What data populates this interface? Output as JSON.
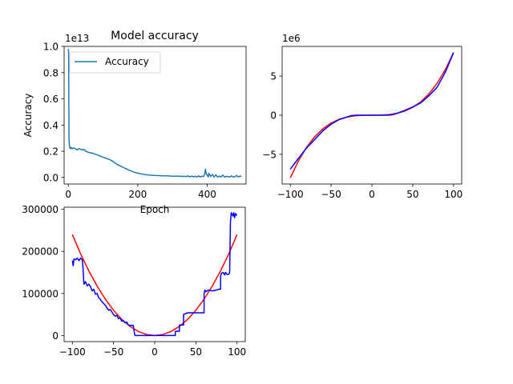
{
  "chart_data": [
    {
      "type": "line",
      "title": "Model accuracy",
      "xlabel": "Epoch",
      "ylabel": "Accuracy",
      "y_offset_text": "1e13",
      "xlim": [
        -12,
        512
      ],
      "ylim": [
        -0.05,
        1.0
      ],
      "x_ticks": [
        0,
        200,
        400
      ],
      "x_tick_labels": [
        "0",
        "200",
        "400"
      ],
      "y_ticks": [
        0.0,
        0.2,
        0.4,
        0.6,
        0.8,
        1.0
      ],
      "y_tick_labels": [
        "0.0",
        "0.2",
        "0.4",
        "0.6",
        "0.8",
        "1.0"
      ],
      "legend": {
        "position": "upper-left",
        "entries": [
          "Accuracy"
        ]
      },
      "grid": false,
      "series": [
        {
          "name": "Accuracy",
          "color": "#1f77b4",
          "x": [
            0,
            1,
            2,
            3,
            4,
            6,
            8,
            10,
            15,
            20,
            25,
            30,
            35,
            40,
            45,
            50,
            60,
            70,
            80,
            90,
            100,
            110,
            120,
            130,
            140,
            150,
            160,
            170,
            180,
            190,
            200,
            210,
            220,
            230,
            240,
            250,
            260,
            270,
            280,
            290,
            300,
            310,
            320,
            330,
            340,
            345,
            350,
            355,
            360,
            365,
            370,
            375,
            380,
            385,
            390,
            393,
            395,
            397,
            400,
            403,
            405,
            410,
            415,
            420,
            425,
            430,
            435,
            440,
            445,
            450,
            455,
            460,
            465,
            470,
            475,
            480,
            485,
            490,
            495,
            499
          ],
          "y": [
            0.98,
            0.95,
            0.3,
            0.25,
            0.23,
            0.22,
            0.23,
            0.22,
            0.225,
            0.22,
            0.21,
            0.22,
            0.215,
            0.21,
            0.215,
            0.2,
            0.19,
            0.185,
            0.175,
            0.165,
            0.155,
            0.145,
            0.135,
            0.12,
            0.1,
            0.088,
            0.075,
            0.062,
            0.05,
            0.04,
            0.033,
            0.027,
            0.022,
            0.019,
            0.017,
            0.015,
            0.014,
            0.013,
            0.012,
            0.011,
            0.01,
            0.009,
            0.009,
            0.008,
            0.008,
            0.012,
            0.004,
            0.011,
            0.005,
            0.009,
            0.003,
            0.012,
            0.004,
            0.01,
            0.008,
            0.025,
            0.065,
            0.03,
            0.018,
            0.004,
            0.032,
            0.008,
            0.022,
            0.004,
            0.02,
            0.003,
            0.01,
            0.004,
            0.018,
            0.003,
            0.008,
            0.006,
            0.004,
            0.012,
            0.003,
            0.006,
            0.015,
            0.004,
            0.011,
            0.006
          ]
        }
      ]
    },
    {
      "type": "line",
      "title": "",
      "xlabel": "",
      "ylabel": "",
      "y_offset_text": "1e6",
      "xlim": [
        -110,
        110
      ],
      "ylim": [
        -8.8,
        8.8
      ],
      "x_ticks": [
        -100,
        -50,
        0,
        50,
        100
      ],
      "x_tick_labels": [
        "−100",
        "−50",
        "0",
        "50",
        "100"
      ],
      "y_ticks": [
        -5,
        0,
        5
      ],
      "y_tick_labels": [
        "−5",
        "0",
        "5"
      ],
      "grid": false,
      "series": [
        {
          "color": "#ff0000",
          "x": [
            -100,
            -90,
            -80,
            -70,
            -60,
            -50,
            -40,
            -30,
            -20,
            -10,
            0,
            10,
            20,
            30,
            40,
            50,
            60,
            70,
            80,
            90,
            100
          ],
          "y": [
            -8.0,
            -5.83,
            -4.1,
            -2.74,
            -1.73,
            -1.0,
            -0.51,
            -0.22,
            -0.06,
            -0.01,
            0.0,
            0.01,
            0.06,
            0.22,
            0.51,
            1.0,
            1.73,
            2.74,
            4.1,
            5.83,
            8.0
          ]
        },
        {
          "color": "#0000ff",
          "x": [
            -100,
            -90,
            -80,
            -70,
            -60,
            -50,
            -40,
            -30,
            -25,
            -20,
            -10,
            0,
            10,
            20,
            25,
            30,
            40,
            50,
            60,
            70,
            80,
            90,
            100
          ],
          "y": [
            -6.9,
            -5.5,
            -4.2,
            -3.1,
            -2.0,
            -1.15,
            -0.55,
            -0.2,
            -0.05,
            0.0,
            0.0,
            0.0,
            0.0,
            0.0,
            0.05,
            0.2,
            0.6,
            1.05,
            1.6,
            2.5,
            3.6,
            5.5,
            8.0
          ]
        }
      ]
    },
    {
      "type": "line",
      "title": "",
      "xlabel": "",
      "ylabel": "",
      "xlim": [
        -110,
        110
      ],
      "ylim": [
        -14500,
        305000
      ],
      "x_ticks": [
        -100,
        -50,
        0,
        50,
        100
      ],
      "x_tick_labels": [
        "−100",
        "−50",
        "0",
        "50",
        "100"
      ],
      "y_ticks": [
        0,
        100000,
        200000,
        300000
      ],
      "y_tick_labels": [
        "0",
        "100000",
        "200000",
        "300000"
      ],
      "grid": false,
      "series": [
        {
          "color": "#ff0000",
          "x": [
            -100,
            -90,
            -80,
            -70,
            -60,
            -50,
            -40,
            -30,
            -20,
            -10,
            0,
            10,
            20,
            30,
            40,
            50,
            60,
            70,
            80,
            90,
            100
          ],
          "y": [
            240000,
            194400,
            153600,
            117600,
            86400,
            60000,
            38400,
            21600,
            9600,
            2400,
            0,
            2400,
            9600,
            21600,
            38400,
            60000,
            86400,
            117600,
            153600,
            194400,
            240000
          ]
        },
        {
          "color": "#0000ff",
          "x": [
            -100,
            -99,
            -98,
            -96,
            -94,
            -92,
            -90,
            -88,
            -87,
            -86,
            -84,
            -82,
            -80,
            -78,
            -76,
            -74,
            -72,
            -70,
            -68,
            -66,
            -64,
            -62,
            -60,
            -58,
            -56,
            -54,
            -52,
            -50,
            -48,
            -46,
            -44,
            -42,
            -40,
            -38,
            -36,
            -34,
            -32,
            -30,
            -28,
            -26,
            -25,
            -24,
            -20,
            -15,
            -10,
            -5,
            0,
            5,
            10,
            15,
            20,
            25,
            25,
            30,
            30,
            35,
            35,
            40,
            45,
            50,
            55,
            60,
            60,
            61,
            62,
            65,
            70,
            75,
            78,
            80,
            80,
            81,
            83,
            85,
            86,
            88,
            90,
            91,
            92,
            93,
            95,
            96,
            97,
            98,
            99,
            100
          ],
          "y": [
            178000,
            166000,
            182000,
            180000,
            184000,
            178000,
            184000,
            180000,
            160000,
            122000,
            128000,
            118000,
            122000,
            116000,
            106000,
            110000,
            98000,
            100000,
            90000,
            86000,
            80000,
            76000,
            72000,
            66000,
            60000,
            62000,
            56000,
            50000,
            46000,
            48000,
            40000,
            42000,
            34000,
            35000,
            30000,
            32000,
            25000,
            24000,
            24000,
            24000,
            10000,
            0,
            0,
            0,
            0,
            0,
            0,
            0,
            0,
            0,
            0,
            0,
            10000,
            10000,
            25000,
            25000,
            50000,
            54000,
            54000,
            54000,
            54000,
            54000,
            100000,
            108000,
            104000,
            108000,
            106000,
            108000,
            110000,
            110000,
            140000,
            148000,
            150000,
            144000,
            150000,
            145000,
            146000,
            150000,
            270000,
            292000,
            284000,
            292000,
            280000,
            290000,
            286000,
            288000
          ]
        }
      ]
    }
  ]
}
